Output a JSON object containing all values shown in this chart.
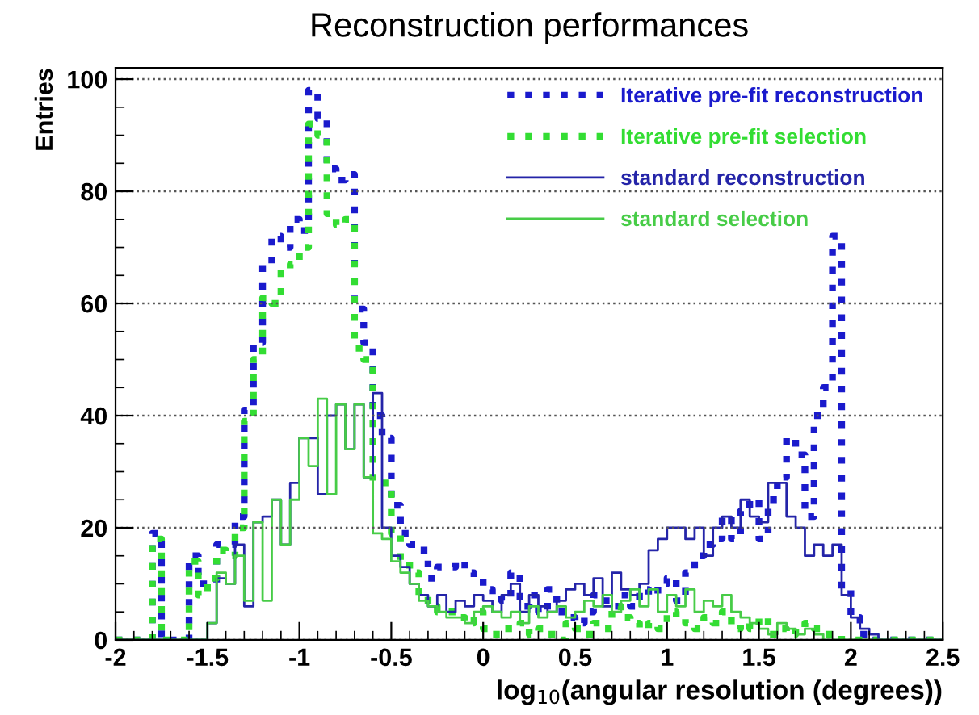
{
  "chart_data": {
    "type": "histogram",
    "title": "Reconstruction performances",
    "xlabel": "log$_{10}$(angular resolution (degrees))",
    "ylabel": "Entries",
    "bins": [
      -2.0,
      -1.95,
      -1.9,
      -1.85,
      -1.8,
      -1.75,
      -1.7,
      -1.65,
      -1.6,
      -1.55,
      -1.5,
      -1.45,
      -1.4,
      -1.35,
      -1.3,
      -1.25,
      -1.2,
      -1.15,
      -1.1,
      -1.05,
      -1.0,
      -0.95,
      -0.9,
      -0.85,
      -0.8,
      -0.75,
      -0.7,
      -0.65,
      -0.6,
      -0.55,
      -0.5,
      -0.45,
      -0.4,
      -0.35,
      -0.3,
      -0.25,
      -0.2,
      -0.15,
      -0.1,
      -0.05,
      0.0,
      0.05,
      0.1,
      0.15,
      0.2,
      0.25,
      0.3,
      0.35,
      0.4,
      0.45,
      0.5,
      0.55,
      0.6,
      0.65,
      0.7,
      0.75,
      0.8,
      0.85,
      0.9,
      0.95,
      1.0,
      1.05,
      1.1,
      1.15,
      1.2,
      1.25,
      1.3,
      1.35,
      1.4,
      1.45,
      1.5,
      1.55,
      1.6,
      1.65,
      1.7,
      1.75,
      1.8,
      1.85,
      1.9,
      1.95,
      2.0,
      2.05,
      2.1,
      2.15,
      2.2,
      2.25,
      2.3,
      2.35,
      2.4,
      2.45,
      2.5
    ],
    "series": [
      {
        "name": "Iterative pre-fit reconstruction",
        "color": "#1a1acc",
        "line_style": "dotted",
        "values": [
          0,
          0,
          0,
          0,
          19,
          0,
          0,
          0,
          15,
          10,
          10,
          17,
          17,
          22,
          41,
          53,
          67,
          72,
          70,
          75,
          73,
          98,
          93,
          84,
          82,
          83,
          59,
          53,
          40,
          36,
          24,
          19,
          17,
          16,
          11,
          13,
          13,
          14,
          12,
          11,
          9,
          8,
          7,
          12,
          6,
          8,
          5,
          9,
          5,
          4,
          3,
          5,
          8,
          7,
          6,
          8,
          6,
          9,
          8,
          10,
          11,
          7,
          12,
          15,
          17,
          18,
          22,
          18,
          23,
          25,
          18,
          25,
          29,
          36,
          33,
          22,
          40,
          45,
          72,
          9,
          4,
          1,
          0,
          0,
          0,
          0,
          0,
          0,
          0,
          0
        ]
      },
      {
        "name": "Iterative pre-fit selection",
        "color": "#33dd33",
        "line_style": "dotted",
        "values": [
          0,
          0,
          0,
          0,
          18,
          0,
          0,
          0,
          14,
          8,
          11,
          16,
          15,
          20,
          39,
          50,
          61,
          60,
          66,
          67,
          70,
          92,
          90,
          76,
          74,
          75,
          52,
          50,
          28,
          28,
          19,
          14,
          12,
          8,
          6,
          5,
          5,
          4,
          3,
          5,
          2,
          1,
          2,
          2,
          3,
          1,
          2,
          1,
          0,
          3,
          2,
          1,
          3,
          2,
          6,
          4,
          3,
          2,
          3,
          2,
          5,
          4,
          3,
          2,
          4,
          3,
          5,
          2,
          3,
          2,
          4,
          1,
          2,
          1,
          2,
          3,
          2,
          1,
          1,
          0,
          0,
          0,
          0,
          0,
          0,
          0,
          0,
          0,
          0,
          0
        ]
      },
      {
        "name": "standard reconstruction",
        "color": "#2424a8",
        "line_style": "solid",
        "values": [
          0,
          0,
          0,
          0,
          0,
          0,
          0,
          0,
          0,
          0,
          3,
          11,
          10,
          17,
          6,
          21,
          22,
          25,
          17,
          28,
          36,
          36,
          26,
          40,
          42,
          34,
          42,
          29,
          44,
          20,
          15,
          13,
          10,
          8,
          6,
          8,
          5,
          7,
          6,
          8,
          7,
          5,
          8,
          10,
          5,
          8,
          6,
          5,
          7,
          9,
          10,
          8,
          11,
          6,
          12,
          9,
          8,
          10,
          16,
          18,
          20,
          20,
          18,
          20,
          15,
          20,
          22,
          20,
          25,
          22,
          21,
          28,
          28,
          22,
          20,
          15,
          17,
          15,
          17,
          8,
          4,
          2,
          1,
          0,
          0,
          0,
          0,
          0,
          0,
          0
        ]
      },
      {
        "name": "standard selection",
        "color": "#47cc47",
        "line_style": "solid",
        "values": [
          0,
          0,
          0,
          0,
          0,
          0,
          0,
          0,
          0,
          0,
          3,
          12,
          10,
          15,
          7,
          21,
          7,
          25,
          17,
          25,
          36,
          31,
          43,
          26,
          42,
          34,
          42,
          29,
          19,
          18,
          14,
          12,
          10,
          7,
          6,
          5,
          4,
          4,
          3,
          5,
          6,
          5,
          4,
          5,
          3,
          6,
          4,
          5,
          6,
          4,
          5,
          7,
          6,
          8,
          5,
          7,
          9,
          6,
          9,
          5,
          8,
          6,
          9,
          5,
          7,
          6,
          8,
          5,
          4,
          3,
          2,
          1,
          3,
          2,
          1,
          2,
          1,
          0,
          0,
          0,
          0,
          0,
          0,
          0,
          0,
          0,
          0,
          0,
          0,
          0
        ]
      }
    ],
    "xlim": [
      -2,
      2.5
    ],
    "xticks": [
      -2,
      -1.5,
      -1,
      -0.5,
      0,
      0.5,
      1,
      1.5,
      2,
      2.5
    ],
    "ylim": [
      0,
      102
    ],
    "yticks": [
      0,
      20,
      40,
      60,
      80,
      100
    ],
    "grid": "y",
    "legend": "top right"
  }
}
